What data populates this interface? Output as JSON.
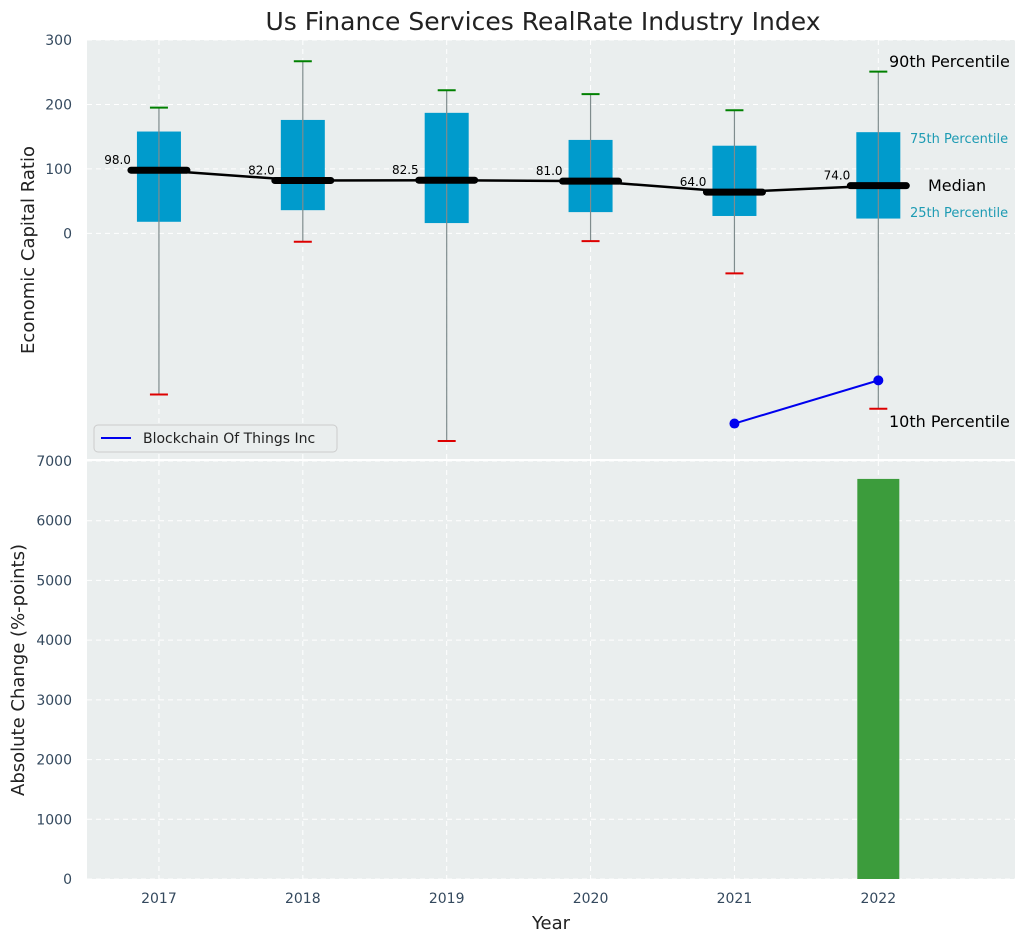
{
  "colors": {
    "panel_bg": "#eaeeee",
    "grid": "#ffffff",
    "box_fill": "#009bcc",
    "whisker": "#7f8c8d",
    "cap_top": "#008000",
    "cap_bottom": "#dd0000",
    "median": "#000000",
    "company_line": "#0000ee",
    "bar": "#3c9c3c",
    "tick_text": "#34495e",
    "annot_cyan": "#1d9bb3"
  },
  "chart_data": [
    {
      "type": "box",
      "title": "Us Finance Services RealRate Industry Index",
      "xlabel": "",
      "ylabel": "Economic Capital Ratio",
      "ylim": [
        -350,
        300
      ],
      "yticks": [
        0,
        100,
        200,
        300
      ],
      "years": [
        "2017",
        "2018",
        "2019",
        "2020",
        "2021",
        "2022"
      ],
      "grid": true,
      "series": [
        {
          "name": "p10",
          "values": [
            -250,
            -13,
            -322,
            -12,
            -62,
            -272
          ]
        },
        {
          "name": "p25",
          "values": [
            18,
            36,
            16,
            33,
            27,
            23
          ]
        },
        {
          "name": "median",
          "values": [
            98.0,
            82.0,
            82.5,
            81.0,
            64.0,
            74.0
          ]
        },
        {
          "name": "p75",
          "values": [
            158,
            176,
            187,
            145,
            136,
            157
          ]
        },
        {
          "name": "p90",
          "values": [
            195,
            267,
            222,
            216,
            191,
            251
          ]
        }
      ],
      "median_labels": [
        "98.0",
        "82.0",
        "82.5",
        "81.0",
        "64.0",
        "74.0"
      ],
      "company": {
        "name": "Blockchain Of Things Inc",
        "x": [
          "2021",
          "2022"
        ],
        "values": [
          -295,
          -228
        ]
      },
      "legend": {
        "placement": "lower-left",
        "label": "Blockchain Of Things Inc"
      },
      "annotations": {
        "p90": "90th Percentile",
        "p75": "75th Percentile",
        "median": "Median",
        "p25": "25th Percentile",
        "p10": "10th Percentile"
      }
    },
    {
      "type": "bar",
      "title": "",
      "xlabel": "Year",
      "ylabel": "Absolute Change (%-points)",
      "ylim": [
        0,
        7000
      ],
      "yticks": [
        0,
        1000,
        2000,
        3000,
        4000,
        5000,
        6000,
        7000
      ],
      "categories": [
        "2017",
        "2018",
        "2019",
        "2020",
        "2021",
        "2022"
      ],
      "values": [
        0,
        0,
        0,
        0,
        0,
        6700
      ],
      "grid": true
    }
  ]
}
